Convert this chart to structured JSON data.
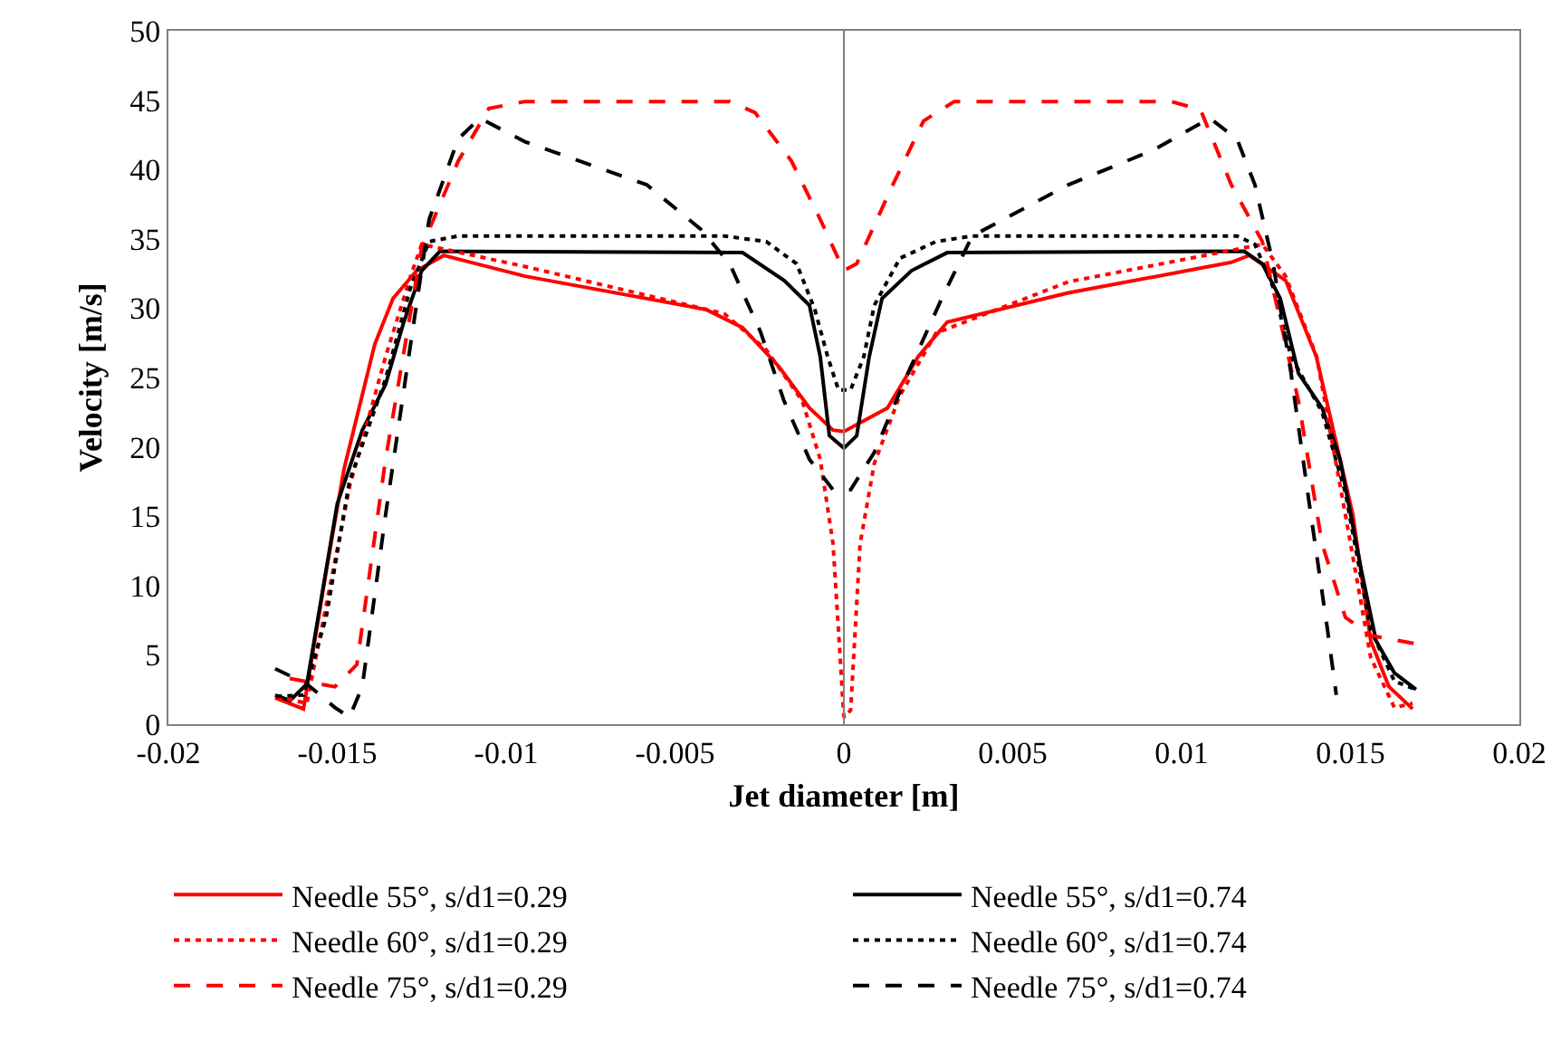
{
  "chart_data": {
    "type": "line",
    "xlabel": "Jet diameter [m]",
    "ylabel": "Velocity [m/s]",
    "xlim": [
      -0.02,
      0.02
    ],
    "xticks": [
      -0.02,
      -0.015,
      -0.01,
      -0.005,
      0,
      0.005,
      0.01,
      0.015,
      0.02
    ],
    "ylim": [
      0,
      50
    ],
    "yticks": [
      0,
      5,
      10,
      15,
      20,
      25,
      30,
      35,
      40,
      45,
      50
    ],
    "legend": "bottom",
    "ref_lines": [
      {
        "axis": "x",
        "value": 0,
        "color": "#808080"
      }
    ],
    "series": [
      {
        "name": "Needle 55°, s/d1=0.29",
        "color": "#ff0000",
        "line_style": "solid",
        "x": [
          -0.01684,
          -0.016,
          -0.01533,
          -0.0148,
          -0.01389,
          -0.01335,
          -0.01265,
          -0.01185,
          -0.00944,
          -0.00408,
          -0.003,
          -0.00193,
          -0.00102,
          -0.00032,
          0,
          0.00129,
          0.0022,
          0.00306,
          0.00665,
          0.01147,
          0.012,
          0.01308,
          0.01399,
          0.01507,
          0.0156,
          0.01614,
          0.01684
        ],
        "values": [
          1.9,
          1.1,
          11,
          18.4,
          27.4,
          30.7,
          32.7,
          33.8,
          32.3,
          29.9,
          28.6,
          25.8,
          22.8,
          21.2,
          21.1,
          22.8,
          26.5,
          29,
          31.1,
          33.3,
          33.8,
          32,
          26.5,
          15.1,
          6,
          2.7,
          1.1
        ]
      },
      {
        "name": "Needle 55°, s/d1=0.74",
        "color": "#000000",
        "line_style": "solid",
        "x": [
          -0.01684,
          -0.0164,
          -0.0159,
          -0.015,
          -0.01426,
          -0.01357,
          -0.01303,
          -0.0125,
          -0.01196,
          -0.003,
          -0.00177,
          -0.00102,
          -0.0007,
          -0.00043,
          0,
          0.00038,
          0.00075,
          0.00113,
          0.002,
          0.00306,
          0.01185,
          0.01239,
          0.01292,
          0.01346,
          0.01416,
          0.01469,
          0.01533,
          0.01576,
          0.0163,
          0.01694
        ],
        "values": [
          2.1,
          1.7,
          2.9,
          15.9,
          21.2,
          24.5,
          29,
          32.7,
          34.1,
          34,
          32,
          30.2,
          26.5,
          20.8,
          19.9,
          20.8,
          26.5,
          30.7,
          32.7,
          34,
          34.1,
          33.2,
          30.7,
          25.3,
          22.8,
          19.1,
          11,
          6,
          3.7,
          2.5
        ]
      },
      {
        "name": "Needle 60°, s/d1=0.29",
        "color": "#ff0000",
        "line_style": "dotted",
        "x": [
          -0.0168,
          -0.0159,
          -0.01463,
          -0.01357,
          -0.01283,
          -0.0125,
          -0.00944,
          -0.00354,
          -0.0023,
          -0.00123,
          -0.0007,
          -0.00032,
          0,
          0.0002,
          0.00048,
          0.0009,
          0.00166,
          0.00273,
          0.00665,
          0.01239,
          0.01308,
          0.014,
          0.01485,
          0.0156,
          0.0163,
          0.01684
        ],
        "values": [
          2,
          1.5,
          17.2,
          26.5,
          32.3,
          34.6,
          33,
          29.6,
          27,
          23.3,
          19.1,
          13,
          0.5,
          1,
          13,
          18.8,
          23.7,
          28.2,
          31.9,
          34.6,
          32.3,
          26.5,
          15.1,
          4.8,
          1.2,
          1.5
        ]
      },
      {
        "name": "Needle 60°, s/d1=0.74",
        "color": "#000000",
        "line_style": "dotted",
        "x": [
          -0.0168,
          -0.016,
          -0.01533,
          -0.01464,
          -0.01357,
          -0.01283,
          -0.01228,
          -0.01142,
          -0.00354,
          -0.0023,
          -0.0014,
          -0.00086,
          -0.00048,
          -0.00016,
          0.0002,
          0.00059,
          0.0009,
          0.00166,
          0.00273,
          0.0038,
          0.01164,
          0.01217,
          0.01271,
          0.01324,
          0.01416,
          0.01485,
          0.0156,
          0.0163,
          0.01694
        ],
        "values": [
          2,
          2.1,
          7.7,
          17.5,
          24.9,
          31.5,
          34.8,
          35.2,
          35.2,
          34.8,
          33.2,
          29.9,
          26.5,
          24.1,
          24.1,
          26.5,
          30.2,
          33.6,
          34.8,
          35.2,
          35.2,
          34.6,
          31.5,
          26.5,
          22.5,
          16.7,
          6.8,
          3.1,
          2.5
        ]
      },
      {
        "name": "Needle 75°, s/d1=0.29",
        "color": "#ff0000",
        "line_style": "dashed",
        "x": [
          -0.01641,
          -0.01507,
          -0.01442,
          -0.01357,
          -0.0125,
          -0.01142,
          -0.01051,
          -0.00944,
          -0.00338,
          -0.00263,
          -0.00155,
          -0.0007,
          0,
          0.00038,
          0.00145,
          0.00236,
          0.00327,
          0.0097,
          0.01056,
          0.01147,
          0.01239,
          0.01346,
          0.01416,
          0.01485,
          0.0156,
          0.01694
        ],
        "values": [
          3.3,
          2.7,
          4.3,
          19.1,
          34.4,
          40.6,
          44.4,
          44.9,
          44.9,
          44.1,
          40.6,
          36.4,
          32.7,
          33.2,
          38.9,
          43.5,
          44.9,
          44.9,
          44.3,
          38.9,
          34.8,
          23.3,
          13,
          7.7,
          6.4,
          5.8
        ]
      },
      {
        "name": "Needle 75°, s/d1=0.74",
        "color": "#000000",
        "line_style": "dashed",
        "x": [
          -0.01684,
          -0.0159,
          -0.01507,
          -0.01464,
          -0.01426,
          -0.01357,
          -0.01283,
          -0.01228,
          -0.01142,
          -0.01078,
          -0.00944,
          -0.00584,
          -0.00424,
          -0.00338,
          -0.00247,
          -0.00177,
          -0.00102,
          -0.00032,
          0.0002,
          0.0009,
          0.00182,
          0.0029,
          0.0038,
          0.00665,
          0.00917,
          0.01083,
          0.01164,
          0.01217,
          0.01271,
          0.01324,
          0.01378,
          0.01432,
          0.01458
        ],
        "values": [
          4,
          2.9,
          1.2,
          0.5,
          2.7,
          15.1,
          27.4,
          36.4,
          42.2,
          43.7,
          42,
          38.9,
          35.7,
          33.2,
          28.3,
          23.3,
          19.1,
          16.9,
          16.9,
          19.6,
          24.9,
          30.7,
          35.2,
          38.9,
          41.4,
          43.7,
          42.2,
          38.9,
          33.2,
          25.3,
          15.9,
          6.8,
          2.1
        ]
      }
    ]
  }
}
